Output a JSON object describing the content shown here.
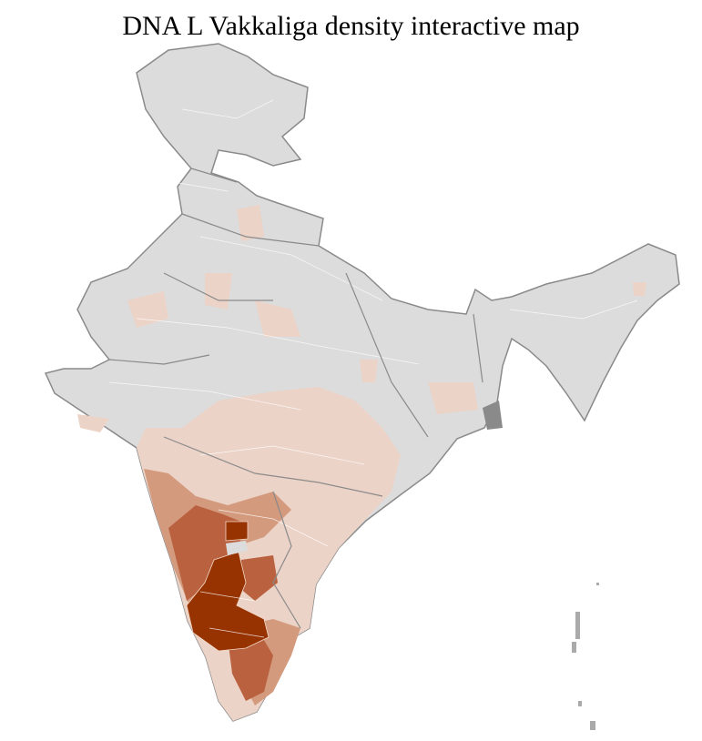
{
  "title": "DNA L Vakkaliga density interactive map",
  "colors": {
    "no_data": "#dcdcdc",
    "low": "#ecd3c7",
    "medium": "#d49a7e",
    "high": "#ba623f",
    "very_high": "#973300",
    "border": "#8a8a8a",
    "district_border": "#ffffff"
  }
}
